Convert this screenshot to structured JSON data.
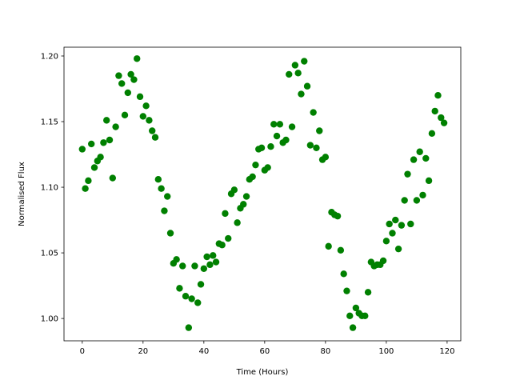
{
  "chart_data": {
    "type": "scatter",
    "xlabel": "Time (Hours)",
    "ylabel": "Normalised Flux",
    "xlim": [
      -6,
      124.5
    ],
    "ylim": [
      0.983,
      1.2067
    ],
    "xticks": [
      0,
      20,
      40,
      60,
      80,
      100,
      120
    ],
    "yticks": [
      {
        "value": 1.0,
        "label": "1.00"
      },
      1.05,
      {
        "value": 1.1,
        "label": "1.10"
      },
      1.15,
      {
        "value": 1.2,
        "label": "1.20"
      }
    ],
    "series": [
      {
        "color": "#008000",
        "x": [
          0,
          1,
          2,
          3,
          4,
          5,
          6,
          7,
          8,
          9,
          10,
          11,
          12,
          13,
          14,
          15,
          16,
          17,
          18,
          19,
          20,
          21,
          22,
          23,
          24,
          25,
          26,
          27,
          28,
          29,
          30,
          31,
          32,
          33,
          34,
          35,
          36,
          37,
          38,
          39,
          40,
          41,
          42,
          43,
          44,
          45,
          46,
          47,
          48,
          49,
          50,
          51,
          52,
          53,
          54,
          55,
          56,
          57,
          58,
          59,
          60,
          61,
          62,
          63,
          64,
          65,
          66,
          67,
          68,
          69,
          70,
          71,
          72,
          73,
          74,
          75,
          76,
          77,
          78,
          79,
          80,
          81,
          82,
          83,
          84,
          85,
          86,
          87,
          88,
          89,
          90,
          91,
          92,
          93,
          94,
          95,
          96,
          97,
          98,
          99,
          100,
          101,
          102,
          103,
          104,
          105,
          106,
          107,
          108,
          109,
          110,
          111,
          112,
          113,
          114,
          115,
          116,
          117,
          118,
          119
        ],
        "values": [
          1.129,
          1.099,
          1.105,
          1.133,
          1.115,
          1.12,
          1.123,
          1.134,
          1.151,
          1.136,
          1.107,
          1.146,
          1.185,
          1.179,
          1.155,
          1.172,
          1.186,
          1.182,
          1.198,
          1.169,
          1.154,
          1.162,
          1.151,
          1.143,
          1.138,
          1.106,
          1.099,
          1.082,
          1.093,
          1.065,
          1.042,
          1.045,
          1.023,
          1.04,
          1.017,
          0.993,
          1.015,
          1.04,
          1.012,
          1.026,
          1.038,
          1.047,
          1.041,
          1.048,
          1.043,
          1.057,
          1.056,
          1.08,
          1.061,
          1.095,
          1.098,
          1.073,
          1.084,
          1.087,
          1.093,
          1.106,
          1.108,
          1.117,
          1.129,
          1.13,
          1.113,
          1.115,
          1.131,
          1.148,
          1.139,
          1.148,
          1.134,
          1.136,
          1.186,
          1.146,
          1.193,
          1.187,
          1.171,
          1.196,
          1.177,
          1.132,
          1.157,
          1.13,
          1.143,
          1.121,
          1.123,
          1.055,
          1.081,
          1.079,
          1.078,
          1.052,
          1.034,
          1.021,
          1.002,
          0.993,
          1.008,
          1.004,
          1.002,
          1.002,
          1.02,
          1.043,
          1.04,
          1.041,
          1.041,
          1.044,
          1.059,
          1.072,
          1.065,
          1.075,
          1.053,
          1.071,
          1.09,
          1.11,
          1.072,
          1.121,
          1.09,
          1.127,
          1.094,
          1.122,
          1.105,
          1.141,
          1.158,
          1.17,
          1.153,
          1.149
        ]
      }
    ]
  }
}
